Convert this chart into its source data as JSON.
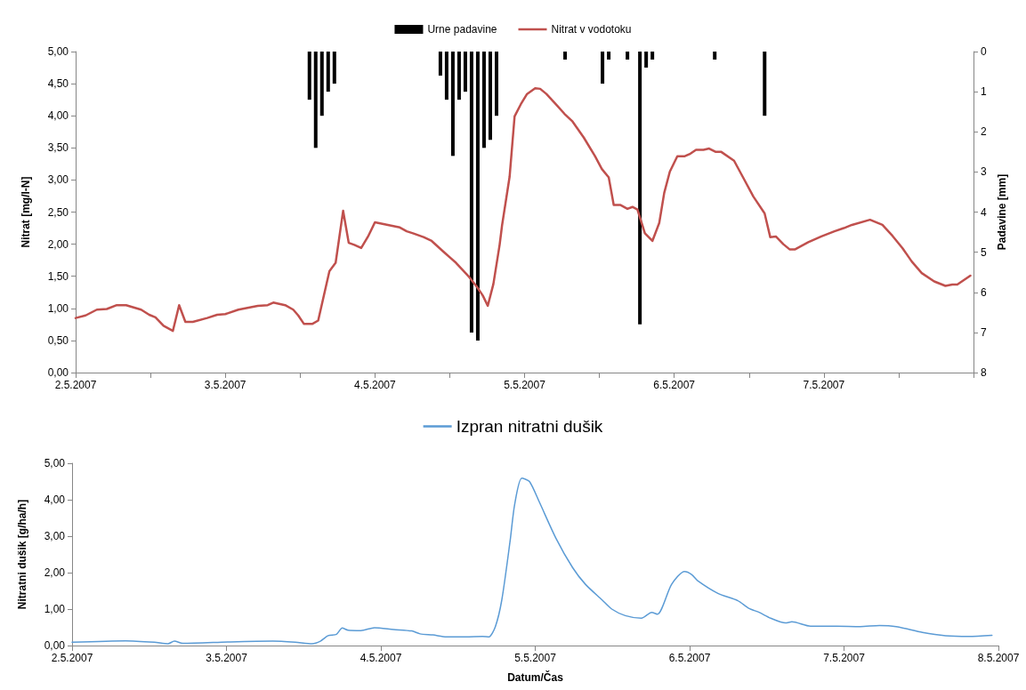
{
  "chart_data": [
    {
      "type": "line",
      "ylabel": "Nitrat [mg/l-N]",
      "y2label": "Padavine [mm]",
      "legend": "top",
      "grid": false,
      "marker": "none",
      "xlim": [
        "2007-05-02",
        "2007-05-08"
      ],
      "xticks": [
        {
          "value": "2007-05-02",
          "label": "2.5.2007"
        },
        {
          "value": "2007-05-02T12:00",
          "label": null
        },
        {
          "value": "2007-05-03",
          "label": "3.5.2007"
        },
        {
          "value": "2007-05-03T12:00",
          "label": null
        },
        {
          "value": "2007-05-04",
          "label": "4.5.2007"
        },
        {
          "value": "2007-05-04T12:00",
          "label": null
        },
        {
          "value": "2007-05-05",
          "label": "5.5.2007"
        },
        {
          "value": "2007-05-05T12:00",
          "label": null
        },
        {
          "value": "2007-05-06",
          "label": "6.5.2007"
        },
        {
          "value": "2007-05-06T12:00",
          "label": null
        },
        {
          "value": "2007-05-07",
          "label": "7.5.2007"
        },
        {
          "value": "2007-05-07T12:00",
          "label": null
        },
        {
          "value": "2007-05-08",
          "label": null
        }
      ],
      "ylim": [
        0,
        5
      ],
      "yticks": [
        {
          "value": 0,
          "label": "0,00"
        },
        {
          "value": 0.5,
          "label": "0,50"
        },
        {
          "value": 1,
          "label": "1,00"
        },
        {
          "value": 1.5,
          "label": "1,50"
        },
        {
          "value": 2,
          "label": "2,00"
        },
        {
          "value": 2.5,
          "label": "2,50"
        },
        {
          "value": 3,
          "label": "3,00"
        },
        {
          "value": 3.5,
          "label": "3,50"
        },
        {
          "value": 4,
          "label": "4,00"
        },
        {
          "value": 4.5,
          "label": "4,50"
        },
        {
          "value": 5,
          "label": "5,00"
        }
      ],
      "y2lim": [
        8,
        0
      ],
      "y2ticks": [
        0,
        1,
        2,
        3,
        4,
        5,
        6,
        7,
        8
      ],
      "series": [
        {
          "name": "Urne padavine",
          "type": "bar",
          "axis": "y2",
          "color": "#000000",
          "x": [
            "2007-05-03T13:30",
            "2007-05-03T14:30",
            "2007-05-03T15:30",
            "2007-05-03T16:30",
            "2007-05-03T17:30",
            "2007-05-04T10:30",
            "2007-05-04T11:30",
            "2007-05-04T12:30",
            "2007-05-04T13:30",
            "2007-05-04T14:30",
            "2007-05-04T15:30",
            "2007-05-04T16:30",
            "2007-05-04T17:30",
            "2007-05-04T18:30",
            "2007-05-04T19:30",
            "2007-05-05T06:30",
            "2007-05-05T12:30",
            "2007-05-05T13:30",
            "2007-05-05T16:30",
            "2007-05-05T18:30",
            "2007-05-05T19:30",
            "2007-05-05T20:30",
            "2007-05-06T06:30",
            "2007-05-06T14:30"
          ],
          "values": [
            1.2,
            2.4,
            1.6,
            1.0,
            0.8,
            0.6,
            1.2,
            2.6,
            1.2,
            1.0,
            7.0,
            7.2,
            2.4,
            2.2,
            1.6,
            0.2,
            0.8,
            0.2,
            0.2,
            6.8,
            0.4,
            0.2,
            0.2,
            1.6
          ]
        },
        {
          "name": "Nitrat v vodotoku",
          "color": "#c0504d",
          "x": [
            "2007-05-02T00:00",
            "2007-05-02T01:36",
            "2007-05-02T03:24",
            "2007-05-02T05:00",
            "2007-05-02T06:36",
            "2007-05-02T08:06",
            "2007-05-02T10:30",
            "2007-05-02T11:48",
            "2007-05-02T12:48",
            "2007-05-02T14:06",
            "2007-05-02T15:36",
            "2007-05-02T16:36",
            "2007-05-02T17:36",
            "2007-05-02T18:48",
            "2007-05-02T21:06",
            "2007-05-02T22:42",
            "2007-05-03T00:00",
            "2007-05-03T02:06",
            "2007-05-03T05:12",
            "2007-05-03T06:48",
            "2007-05-03T07:42",
            "2007-05-03T09:36",
            "2007-05-03T10:54",
            "2007-05-03T11:42",
            "2007-05-03T12:36",
            "2007-05-03T14:00",
            "2007-05-03T14:54",
            "2007-05-03T16:42",
            "2007-05-03T17:42",
            "2007-05-03T18:54",
            "2007-05-03T19:48",
            "2007-05-03T20:42",
            "2007-05-03T21:48",
            "2007-05-03T22:54",
            "2007-05-04T00:00",
            "2007-05-04T02:36",
            "2007-05-04T04:00",
            "2007-05-04T05:06",
            "2007-05-04T06:06",
            "2007-05-04T07:48",
            "2007-05-04T09:06",
            "2007-05-04T10:54",
            "2007-05-04T13:00",
            "2007-05-04T15:06",
            "2007-05-04T16:24",
            "2007-05-04T17:18",
            "2007-05-04T18:06",
            "2007-05-04T19:00",
            "2007-05-04T20:00",
            "2007-05-04T20:24",
            "2007-05-04T21:36",
            "2007-05-04T22:24",
            "2007-05-04T23:24",
            "2007-05-05T00:24",
            "2007-05-05T01:42",
            "2007-05-05T02:30",
            "2007-05-05T03:30",
            "2007-05-05T05:18",
            "2007-05-05T06:24",
            "2007-05-05T07:42",
            "2007-05-05T09:30",
            "2007-05-05T11:18",
            "2007-05-05T12:24",
            "2007-05-05T13:30",
            "2007-05-05T14:18",
            "2007-05-05T15:24",
            "2007-05-05T16:30",
            "2007-05-05T17:18",
            "2007-05-05T18:06",
            "2007-05-05T19:18",
            "2007-05-05T20:30",
            "2007-05-05T21:36",
            "2007-05-05T22:24",
            "2007-05-05T23:18",
            "2007-05-06T00:30",
            "2007-05-06T01:42",
            "2007-05-06T02:36",
            "2007-05-06T03:30",
            "2007-05-06T04:42",
            "2007-05-06T05:36",
            "2007-05-06T06:36",
            "2007-05-06T07:30",
            "2007-05-06T09:36",
            "2007-05-06T11:06",
            "2007-05-06T12:42",
            "2007-05-06T14:30",
            "2007-05-06T15:24",
            "2007-05-06T16:18",
            "2007-05-06T17:30",
            "2007-05-06T18:30",
            "2007-05-06T19:24",
            "2007-05-06T21:30",
            "2007-05-06T23:36",
            "2007-05-07T01:42",
            "2007-05-07T03:12",
            "2007-05-07T04:30",
            "2007-05-07T07:24",
            "2007-05-07T09:24",
            "2007-05-07T11:00",
            "2007-05-07T12:36",
            "2007-05-07T14:06",
            "2007-05-07T15:42",
            "2007-05-07T17:42",
            "2007-05-07T19:30",
            "2007-05-07T20:36",
            "2007-05-07T21:24",
            "2007-05-07T23:30"
          ],
          "values": [
            0.85,
            0.89,
            0.98,
            0.99,
            1.05,
            1.05,
            0.98,
            0.9,
            0.86,
            0.73,
            0.65,
            1.05,
            0.79,
            0.79,
            0.85,
            0.9,
            0.91,
            0.98,
            1.04,
            1.05,
            1.09,
            1.05,
            0.98,
            0.89,
            0.76,
            0.76,
            0.81,
            1.58,
            1.71,
            2.52,
            2.02,
            1.99,
            1.94,
            2.12,
            2.34,
            2.29,
            2.26,
            2.2,
            2.17,
            2.11,
            2.05,
            1.89,
            1.71,
            1.49,
            1.33,
            1.2,
            1.04,
            1.38,
            1.99,
            2.3,
            3.05,
            3.99,
            4.18,
            4.34,
            4.43,
            4.42,
            4.34,
            4.15,
            4.03,
            3.91,
            3.66,
            3.37,
            3.17,
            3.04,
            2.61,
            2.61,
            2.55,
            2.58,
            2.54,
            2.17,
            2.05,
            2.33,
            2.8,
            3.13,
            3.37,
            3.37,
            3.41,
            3.47,
            3.47,
            3.49,
            3.44,
            3.44,
            3.3,
            3.03,
            2.74,
            2.48,
            2.11,
            2.12,
            2.0,
            1.92,
            1.92,
            2.03,
            2.12,
            2.2,
            2.25,
            2.3,
            2.38,
            2.3,
            2.13,
            1.94,
            1.73,
            1.55,
            1.42,
            1.35,
            1.37,
            1.37,
            1.51
          ]
        }
      ]
    },
    {
      "type": "line",
      "ylabel": "Nitratni dušik [g/ha/h]",
      "xlabel": "Datum/Čas",
      "legend": "top",
      "grid": false,
      "marker": "none",
      "xlim": [
        "2007-05-02",
        "2007-05-08"
      ],
      "xticks": [
        {
          "value": "2007-05-02",
          "label": "2.5.2007"
        },
        {
          "value": "2007-05-03",
          "label": "3.5.2007"
        },
        {
          "value": "2007-05-04",
          "label": "4.5.2007"
        },
        {
          "value": "2007-05-05",
          "label": "5.5.2007"
        },
        {
          "value": "2007-05-06",
          "label": "6.5.2007"
        },
        {
          "value": "2007-05-07",
          "label": "7.5.2007"
        },
        {
          "value": "2007-05-08",
          "label": "8.5.2007"
        }
      ],
      "ylim": [
        0,
        5
      ],
      "yticks": [
        {
          "value": 0,
          "label": "0,00"
        },
        {
          "value": 1,
          "label": "1,00"
        },
        {
          "value": 2,
          "label": "2,00"
        },
        {
          "value": 3,
          "label": "3,00"
        },
        {
          "value": 4,
          "label": "4,00"
        },
        {
          "value": 5,
          "label": "5,00"
        }
      ],
      "series": [
        {
          "name": "Izpran nitratni dušik",
          "color": "#5b9bd5",
          "x": [
            "2007-05-02T00:00",
            "2007-05-02T08:18",
            "2007-05-02T12:48",
            "2007-05-02T14:54",
            "2007-05-02T15:54",
            "2007-05-02T17:12",
            "2007-05-03T00:36",
            "2007-05-03T07:12",
            "2007-05-03T10:42",
            "2007-05-03T13:18",
            "2007-05-03T14:36",
            "2007-05-03T15:48",
            "2007-05-03T17:06",
            "2007-05-03T18:00",
            "2007-05-03T18:54",
            "2007-05-03T20:54",
            "2007-05-03T23:00",
            "2007-05-04T02:00",
            "2007-05-04T04:48",
            "2007-05-04T06:06",
            "2007-05-04T08:06",
            "2007-05-04T10:12",
            "2007-05-04T13:12",
            "2007-05-04T15:48",
            "2007-05-04T16:48",
            "2007-05-04T17:48",
            "2007-05-04T18:48",
            "2007-05-04T20:06",
            "2007-05-04T20:48",
            "2007-05-04T21:54",
            "2007-05-04T23:06",
            "2007-05-05T00:36",
            "2007-05-05T03:12",
            "2007-05-05T05:48",
            "2007-05-05T07:48",
            "2007-05-05T10:24",
            "2007-05-05T11:54",
            "2007-05-05T14:00",
            "2007-05-05T16:30",
            "2007-05-05T18:06",
            "2007-05-05T19:00",
            "2007-05-05T21:12",
            "2007-05-05T23:12",
            "2007-05-06T00:18",
            "2007-05-06T01:18",
            "2007-05-06T04:24",
            "2007-05-06T07:30",
            "2007-05-06T09:12",
            "2007-05-06T10:48",
            "2007-05-06T12:36",
            "2007-05-06T14:54",
            "2007-05-06T15:54",
            "2007-05-06T18:48",
            "2007-05-06T22:54",
            "2007-05-07T02:30",
            "2007-05-07T05:30",
            "2007-05-07T08:06",
            "2007-05-07T12:12",
            "2007-05-07T15:48",
            "2007-05-07T19:24",
            "2007-05-07T23:00"
          ],
          "values": [
            0.09,
            0.13,
            0.09,
            0.05,
            0.12,
            0.06,
            0.1,
            0.12,
            0.09,
            0.05,
            0.12,
            0.27,
            0.31,
            0.48,
            0.42,
            0.41,
            0.49,
            0.44,
            0.4,
            0.32,
            0.29,
            0.24,
            0.24,
            0.25,
            0.24,
            0.52,
            1.25,
            2.88,
            3.87,
            4.59,
            4.5,
            3.95,
            2.95,
            2.14,
            1.68,
            1.25,
            1.0,
            0.82,
            0.75,
            0.91,
            0.86,
            1.68,
            2.03,
            1.95,
            1.77,
            1.43,
            1.23,
            1.02,
            0.91,
            0.75,
            0.62,
            0.65,
            0.53,
            0.53,
            0.52,
            0.55,
            0.52,
            0.36,
            0.27,
            0.25,
            0.28
          ]
        }
      ]
    }
  ]
}
